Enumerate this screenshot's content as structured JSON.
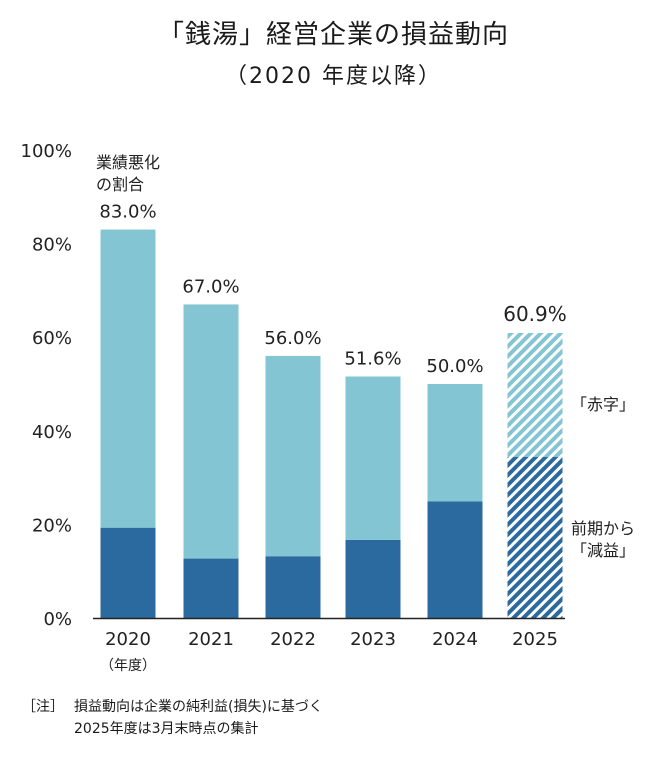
{
  "title": "「銭湯」経営企業の損益動向",
  "subtitle": "（2020 年度以降）",
  "chart_data": {
    "type": "bar",
    "stacked": true,
    "categories": [
      "2020",
      "2021",
      "2022",
      "2023",
      "2024",
      "2025"
    ],
    "category_total_labels": [
      "83.0%",
      "67.0%",
      "56.0%",
      "51.6%",
      "50.0%",
      "60.9%"
    ],
    "xlabel": "（年度）",
    "ylim": [
      0,
      100
    ],
    "y_ticks": [
      "0%",
      "20%",
      "40%",
      "60%",
      "80%",
      "100%"
    ],
    "series": [
      {
        "name": "前期から「減益」",
        "values": [
          19.3,
          12.7,
          13.2,
          16.7,
          24.9,
          34.4
        ]
      },
      {
        "name": "「赤字」",
        "values": [
          63.7,
          54.3,
          42.8,
          34.9,
          25.1,
          26.5
        ]
      }
    ],
    "annotation_top_label": "業績悪化\nの割合",
    "legend_red": "「赤字」",
    "legend_decline": "前期から\n「減益」",
    "colors": {
      "decline": "#2b6a9e",
      "red": "#84c5d3",
      "axis": "#222222"
    },
    "hatched_category": "2025"
  },
  "note": {
    "prefix": "［注］",
    "lines": [
      "損益動向は企業の純利益(損失)に基づく",
      "2025年度は3月末時点の集計"
    ]
  }
}
